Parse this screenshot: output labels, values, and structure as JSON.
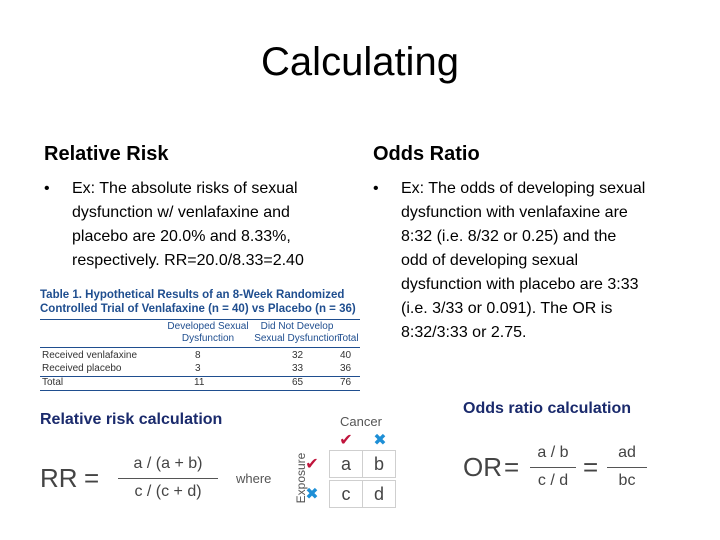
{
  "title": "Calculating",
  "left": {
    "heading": "Relative Risk",
    "bullet_lines": [
      "Ex: The absolute risks of sexual",
      "dysfunction w/ venlafaxine and",
      "placebo are 20.0% and 8.33%,",
      "respectively.  RR=20.0/8.33=2.40"
    ]
  },
  "right": {
    "heading": "Odds Ratio",
    "bullet_lines": [
      "Ex: The odds of developing sexual",
      "dysfunction with venlafaxine are",
      "8:32 (i.e. 8/32 or 0.25) and the",
      "odd of developing sexual",
      "dysfunction with placebo are 3:33",
      "(i.e. 3/33 or 0.091).  The OR is",
      "8:32/3:33 or 2.75."
    ]
  },
  "bullet_symbol": "•",
  "table": {
    "title_line1": "Table 1. Hypothetical Results of an 8-Week Randomized",
    "title_line2": "Controlled Trial of Venlafaxine (n = 40) vs Placebo (n = 36)",
    "col_header_1a": "Developed Sexual",
    "col_header_1b": "Dysfunction",
    "col_header_2a": "Did Not Develop",
    "col_header_2b": "Sexual Dysfunction",
    "col_header_3": "Total",
    "rows": [
      {
        "label": "Received venlafaxine",
        "a": "8",
        "b": "32",
        "total": "40"
      },
      {
        "label": "Received placebo",
        "a": "3",
        "b": "33",
        "total": "36"
      },
      {
        "label": "Total",
        "a": "11",
        "b": "65",
        "total": "76"
      }
    ]
  },
  "rr_calc": {
    "heading": "Relative risk calculation",
    "lhs": "RR",
    "equals": "=",
    "numerator": "a / (a + b)",
    "denominator": "c / (c + d)",
    "where": "where",
    "cancer_label": "Cancer",
    "exposure_label": "Exposure",
    "check": "✔",
    "cross": "✖",
    "cells": [
      "a",
      "b",
      "c",
      "d"
    ]
  },
  "or_calc": {
    "heading": "Odds ratio calculation",
    "lhs": "OR",
    "equals": "=",
    "num1": "a / b",
    "den1": "c / d",
    "num2": "ad",
    "den2": "bc"
  },
  "colors": {
    "table_blue": "#1f4e8f",
    "heading_navy": "#1a2a6c",
    "check_red": "#c0143c",
    "cross_blue": "#1e8fd6"
  }
}
